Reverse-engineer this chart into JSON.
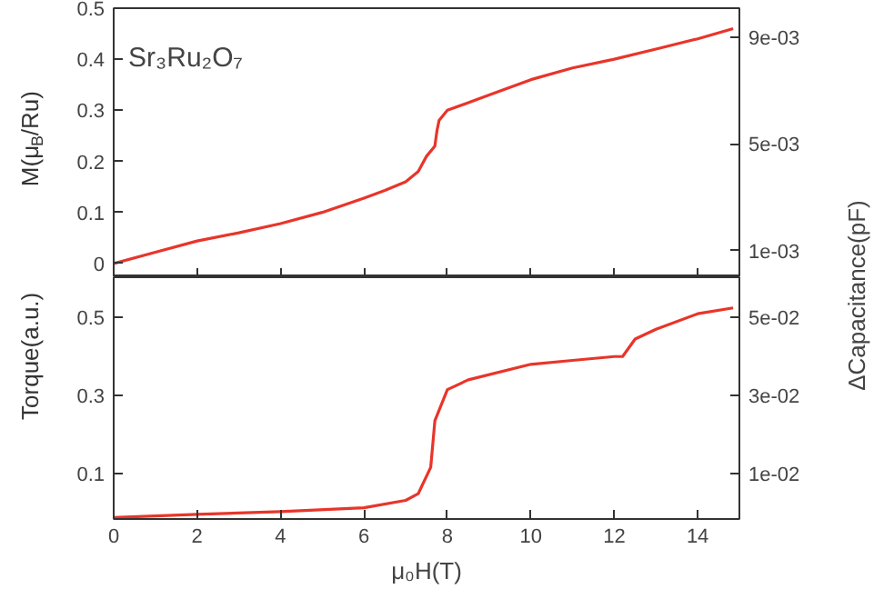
{
  "chart_data": [
    {
      "type": "line",
      "ylabel": "M(μ$_{B}$/Ru)",
      "annotations": [
        "Sr₃Ru₂O₇"
      ],
      "xlim": [
        0,
        15
      ],
      "xticks": [
        0,
        2,
        4,
        6,
        8,
        10,
        12,
        14
      ],
      "ylim": [
        -0.027,
        0.5
      ],
      "yticks": [
        0,
        0.1,
        0.2,
        0.3,
        0.4,
        0.5
      ],
      "y2lim": [
        0,
        0.0101
      ],
      "y2ticks": [
        {
          "value": 0.001,
          "label": "1e-03"
        },
        {
          "value": 0.005,
          "label": "5e-03"
        },
        {
          "value": 0.009,
          "label": "9e-03"
        }
      ],
      "tick_labels": "y",
      "grid": false,
      "x": [
        0,
        1,
        2,
        3,
        4,
        5,
        6,
        6.5,
        7,
        7.3,
        7.5,
        7.7,
        7.75,
        7.8,
        8.0,
        8.5,
        9,
        10,
        11,
        12,
        13,
        14,
        14.85
      ],
      "series": [
        {
          "color": "#e8352a",
          "values": [
            0,
            0.022,
            0.044,
            0.06,
            0.078,
            0.1,
            0.128,
            0.143,
            0.16,
            0.18,
            0.21,
            0.23,
            0.26,
            0.28,
            0.3,
            0.315,
            0.33,
            0.36,
            0.383,
            0.4,
            0.42,
            0.44,
            0.46
          ]
        }
      ]
    },
    {
      "type": "line",
      "xlabel": "μ₀H(T)",
      "ylabel": "Torque(a.u.)",
      "y2label": "ΔCapacitance(pF)",
      "xlim": [
        0,
        15
      ],
      "xticks": [
        0,
        2,
        4,
        6,
        8,
        10,
        12,
        14
      ],
      "ylim": [
        -0.018,
        0.604
      ],
      "yticks": [
        0.1,
        0.3,
        0.5
      ],
      "y2lim": [
        -0.0018,
        0.0604
      ],
      "y2ticks": [
        {
          "value": 0.01,
          "label": "1e-02"
        },
        {
          "value": 0.03,
          "label": "3e-02"
        },
        {
          "value": 0.05,
          "label": "5e-02"
        }
      ],
      "grid": false,
      "x": [
        0,
        2,
        4,
        6,
        7,
        7.3,
        7.6,
        7.7,
        8,
        8.5,
        10,
        11,
        12,
        12.2,
        12.5,
        13,
        14,
        14.85
      ],
      "series": [
        {
          "color": "#e8352a",
          "values": [
            -0.014,
            -0.006,
            0.001,
            0.011,
            0.03,
            0.047,
            0.115,
            0.235,
            0.315,
            0.34,
            0.38,
            0.39,
            0.4,
            0.4,
            0.445,
            0.47,
            0.51,
            0.525
          ]
        }
      ]
    }
  ]
}
